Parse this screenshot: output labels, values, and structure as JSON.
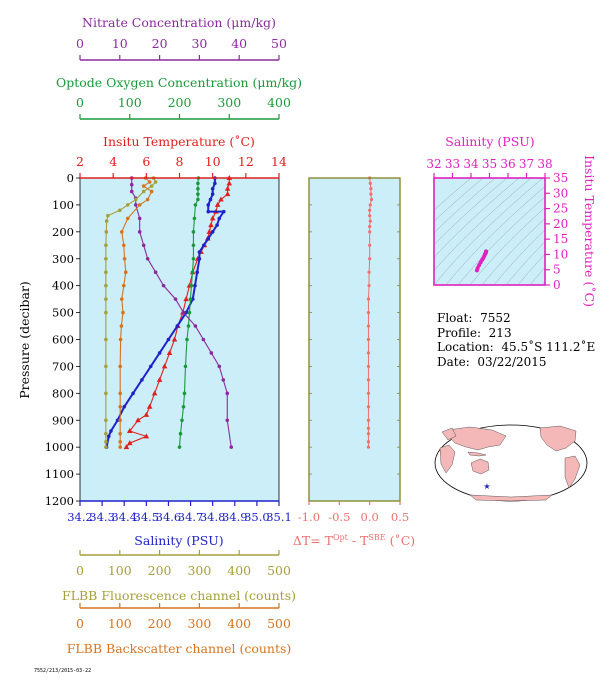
{
  "colors": {
    "nitrate": "#8B2B9E",
    "oxygen": "#1A9A3A",
    "temperature": "#E0201E",
    "salinity": "#1E22C8",
    "fluorescence": "#A5A03A",
    "backscatter": "#D6741E",
    "delta_t": "#F07070",
    "ts_panel": "#E020C0",
    "plot_bg": "#CCEEF8",
    "axis_frame": "#8A8A2A"
  },
  "axes": {
    "nitrate": {
      "label": "Nitrate Concentration (μm/kg)",
      "ticks": [
        "0",
        "10",
        "20",
        "30",
        "40",
        "50"
      ]
    },
    "oxygen": {
      "label": "Optode Oxygen Concentration (μm/kg)",
      "ticks": [
        "0",
        "100",
        "200",
        "300",
        "400"
      ]
    },
    "temperature": {
      "label": "Insitu Temperature (˚C)",
      "ticks": [
        "2",
        "4",
        "6",
        "8",
        "10",
        "12",
        "14"
      ]
    },
    "pressure": {
      "label": "Pressure (decibar)",
      "ticks": [
        "0",
        "100",
        "200",
        "300",
        "400",
        "500",
        "600",
        "700",
        "800",
        "900",
        "1000",
        "1100",
        "1200"
      ]
    },
    "salinity": {
      "label": "Salinity (PSU)",
      "ticks": [
        "34.2",
        "34.3",
        "34.4",
        "34.5",
        "34.6",
        "34.7",
        "34.8",
        "34.9",
        "35.0",
        "35.1"
      ]
    },
    "fluorescence": {
      "label": "FLBB Fluorescence channel (counts)",
      "ticks": [
        "0",
        "100",
        "200",
        "300",
        "400",
        "500"
      ]
    },
    "backscatter": {
      "label": "FLBB Backscatter channel (counts)",
      "ticks": [
        "0",
        "100",
        "200",
        "300",
        "400",
        "500"
      ]
    },
    "delta_t": {
      "label_prefix": "ΔT= T",
      "label_sup1": "Opt",
      "label_mid": " - T",
      "label_sup2": "SBE",
      "label_suffix": " (˚C)",
      "ticks": [
        "-1.0",
        "-0.5",
        "0.0",
        "0.5"
      ]
    },
    "ts_salinity": {
      "label": "Salinity (PSU)",
      "ticks": [
        "32",
        "33",
        "34",
        "35",
        "36",
        "37",
        "38"
      ]
    },
    "ts_temperature": {
      "label": "Insitu Temperature (˚C)",
      "ticks": [
        "0",
        "5",
        "10",
        "15",
        "20",
        "25",
        "30",
        "35"
      ]
    }
  },
  "info": {
    "float_label": "Float:",
    "float_value": "7552",
    "profile_label": "Profile:",
    "profile_value": "213",
    "location_label": "Location:",
    "location_value": "45.5˚S  111.2˚E",
    "date_label": "Date:",
    "date_value": "03/22/2015"
  },
  "footer_tag": "7552/213/2015-03-22",
  "chart_data": [
    {
      "type": "line",
      "title": "",
      "ylabel": "Pressure (decibar)",
      "ylim": [
        1200,
        0
      ],
      "series": [
        {
          "name": "Insitu Temperature",
          "xlim": [
            2,
            14
          ],
          "x": [
            11.0,
            11.0,
            10.9,
            10.9,
            10.5,
            10.3,
            10.2,
            10.0,
            9.9,
            9.8,
            9.7,
            9.5,
            9.3,
            9.1,
            8.8,
            8.6,
            8.4,
            8.2,
            7.9,
            7.7,
            7.4,
            7.1,
            6.8,
            6.5,
            6.2,
            6.0,
            5.5,
            5.0,
            6.0,
            5.0,
            4.8
          ],
          "y": [
            0,
            20,
            40,
            60,
            80,
            100,
            125,
            150,
            175,
            200,
            225,
            250,
            275,
            300,
            350,
            400,
            450,
            500,
            550,
            600,
            650,
            700,
            750,
            800,
            850,
            880,
            900,
            940,
            960,
            985,
            1000
          ]
        },
        {
          "name": "Salinity",
          "xlim": [
            34.2,
            35.1
          ],
          "x": [
            34.81,
            34.81,
            34.8,
            34.8,
            34.79,
            34.78,
            34.78,
            34.85,
            34.83,
            34.82,
            34.8,
            34.78,
            34.76,
            34.74,
            34.74,
            34.73,
            34.72,
            34.71,
            34.68,
            34.64,
            34.6,
            34.56,
            34.52,
            34.48,
            34.44,
            34.4,
            34.37,
            34.34,
            34.33,
            34.32
          ],
          "y": [
            0,
            20,
            40,
            60,
            80,
            100,
            125,
            125,
            150,
            175,
            200,
            225,
            250,
            275,
            300,
            350,
            400,
            450,
            500,
            550,
            600,
            650,
            700,
            750,
            800,
            850,
            900,
            940,
            960,
            1000
          ]
        },
        {
          "name": "Optode Oxygen",
          "xlim": [
            0,
            400
          ],
          "x": [
            238,
            237,
            237,
            237,
            237,
            232,
            230,
            228,
            228,
            228,
            226,
            224,
            222,
            220,
            218,
            215,
            212,
            210,
            208,
            205,
            202,
            200
          ],
          "y": [
            0,
            20,
            40,
            60,
            80,
            100,
            150,
            200,
            250,
            300,
            350,
            400,
            450,
            500,
            550,
            600,
            700,
            800,
            850,
            900,
            950,
            1000
          ]
        },
        {
          "name": "Nitrate",
          "xlim": [
            0,
            50
          ],
          "x": [
            13,
            13,
            13,
            14,
            14,
            15,
            15,
            16,
            17,
            19,
            21,
            24,
            26,
            29,
            31,
            33,
            35,
            36,
            37,
            37,
            38
          ],
          "y": [
            0,
            25,
            50,
            75,
            100,
            150,
            200,
            250,
            300,
            350,
            400,
            450,
            500,
            550,
            600,
            650,
            700,
            750,
            800,
            900,
            1000
          ]
        },
        {
          "name": "FLBB Fluorescence",
          "xlim": [
            0,
            500
          ],
          "x": [
            185,
            190,
            180,
            160,
            140,
            120,
            100,
            70,
            67,
            66,
            65,
            65,
            65,
            65,
            65,
            65,
            65,
            65,
            65,
            65,
            65,
            65,
            65
          ],
          "y": [
            0,
            15,
            30,
            50,
            80,
            100,
            120,
            140,
            160,
            200,
            250,
            300,
            350,
            400,
            450,
            500,
            600,
            700,
            800,
            900,
            950,
            980,
            1000
          ]
        },
        {
          "name": "FLBB Backscatter",
          "xlim": [
            0,
            500
          ],
          "x": [
            165,
            175,
            160,
            180,
            170,
            150,
            120,
            105,
            110,
            112,
            115,
            110,
            105,
            108,
            104,
            102,
            101,
            101,
            101,
            101,
            101,
            101,
            101
          ],
          "y": [
            0,
            15,
            30,
            50,
            80,
            100,
            150,
            200,
            250,
            300,
            350,
            400,
            450,
            500,
            550,
            600,
            700,
            800,
            850,
            900,
            950,
            980,
            1000
          ]
        }
      ]
    },
    {
      "type": "scatter",
      "title": "",
      "xlabel": "ΔT",
      "ylabel": "Pressure (decibar)",
      "xlim": [
        -1.0,
        0.5
      ],
      "ylim": [
        1200,
        0
      ],
      "series": [
        {
          "name": "ΔT",
          "x": [
            0.0,
            0.01,
            0.02,
            0.02,
            0.03,
            0.01,
            0.0,
            0.0,
            0.01,
            0.0,
            0.0,
            0.0,
            0.0,
            -0.01,
            -0.01,
            -0.02,
            -0.02,
            -0.02,
            -0.02,
            -0.02,
            -0.02,
            -0.02,
            -0.02,
            -0.02,
            -0.02,
            -0.02,
            -0.02,
            -0.02,
            -0.02
          ],
          "y": [
            0,
            20,
            40,
            60,
            80,
            100,
            120,
            140,
            160,
            180,
            200,
            250,
            300,
            350,
            400,
            450,
            500,
            550,
            600,
            650,
            700,
            750,
            800,
            850,
            900,
            930,
            950,
            980,
            1000
          ]
        }
      ]
    },
    {
      "type": "scatter",
      "title": "",
      "xlabel": "Salinity (PSU)",
      "ylabel": "Insitu Temperature (˚C)",
      "xlim": [
        32,
        38
      ],
      "ylim": [
        0,
        35
      ],
      "series": [
        {
          "name": "T-S",
          "x": [
            34.32,
            34.36,
            34.44,
            34.52,
            34.6,
            34.66,
            34.72,
            34.75,
            34.78,
            34.8,
            34.82,
            34.81
          ],
          "y": [
            4.8,
            5.5,
            6.5,
            7.4,
            8.2,
            8.8,
            9.5,
            10.0,
            10.3,
            10.5,
            10.9,
            11.0
          ]
        }
      ]
    }
  ]
}
